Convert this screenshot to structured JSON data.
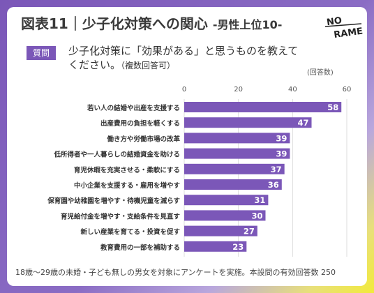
{
  "title": {
    "main": "図表11｜少子化対策への関心",
    "sub": "-男性上位10-"
  },
  "logo": {
    "text_top": "NO",
    "text_bottom": "RAME"
  },
  "question": {
    "badge": "質問",
    "text": "少子化対策に「効果がある」と思うものを教えてください。",
    "note": "（複数回答可）"
  },
  "unit_label": "(回答数)",
  "footnote": "18歳～29歳の未婚・子ども無しの男女を対象にアンケートを実施。本設問の有効回答数 250",
  "colors": {
    "bar": "#7b57b8",
    "accent": "#7b57b8",
    "highlight": "#f2ea3a"
  },
  "chart_data": {
    "type": "bar",
    "orientation": "horizontal",
    "categories": [
      "若い人の結婚や出産を支援する",
      "出産費用の負担を軽くする",
      "働き方や労働市場の改革",
      "低所得者や一人暮らしの結婚資金を助ける",
      "育児休暇を充実させる・柔軟にする",
      "中小企業を支援する・雇用を増やす",
      "保育園や幼稚園を増やす・待機児童を減らす",
      "育児給付金を増やす・支給条件を見直す",
      "新しい産業を育てる・投資を促す",
      "教育費用の一部を補助する"
    ],
    "values": [
      58,
      47,
      39,
      39,
      37,
      36,
      31,
      30,
      27,
      23
    ],
    "xlim": [
      0,
      60
    ],
    "xticks": [
      0,
      20,
      40,
      60
    ],
    "grid": true
  }
}
